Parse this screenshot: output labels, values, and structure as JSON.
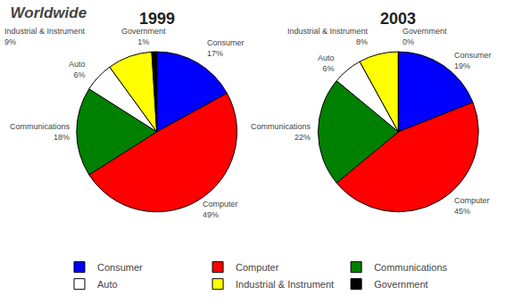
{
  "chart_data": {
    "type": "pie",
    "title": "Worldwide",
    "categories": [
      "Consumer",
      "Computer",
      "Communications",
      "Auto",
      "Industrial & Instrument",
      "Government"
    ],
    "colors": [
      "#0000FF",
      "#FF0000",
      "#008000",
      "#FFFFFF",
      "#FFFF00",
      "#000000"
    ],
    "series": [
      {
        "name": "1999",
        "values": [
          17,
          49,
          18,
          6,
          9,
          1
        ],
        "value_labels": [
          "17%",
          "49%",
          "18%",
          "6%",
          "9%",
          "1%"
        ]
      },
      {
        "name": "2003",
        "values": [
          19,
          45,
          22,
          6,
          8,
          0
        ],
        "value_labels": [
          "19%",
          "45%",
          "22%",
          "6%",
          "8%",
          "0%"
        ]
      }
    ],
    "data_labels": true,
    "legend": "bottom"
  }
}
